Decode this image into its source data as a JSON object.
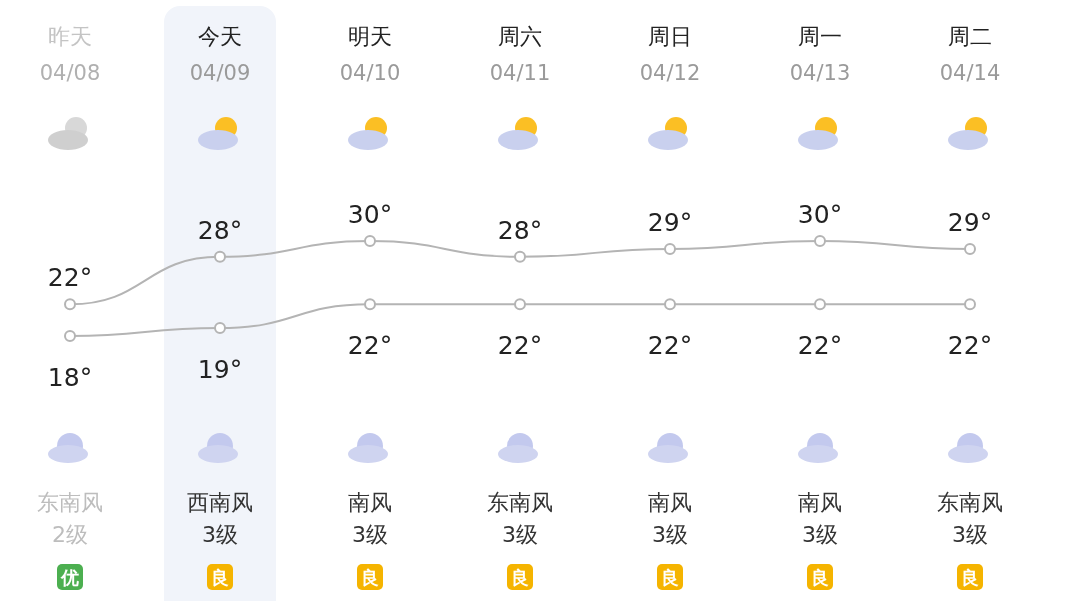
{
  "chart_data": {
    "type": "line",
    "categories": [
      "昨天\n04/08",
      "今天\n04/09",
      "明天\n04/10",
      "周六\n04/11",
      "周日\n04/12",
      "周一\n04/13",
      "周二\n04/14"
    ],
    "series": [
      {
        "color": "#b4b4b4",
        "values": [
          22,
          28,
          30,
          28,
          29,
          30,
          29
        ],
        "value_labels": [
          "22°",
          "28°",
          "30°",
          "28°",
          "29°",
          "30°",
          "29°"
        ]
      },
      {
        "color": "#b4b4b4",
        "values": [
          18,
          19,
          22,
          22,
          22,
          22,
          22
        ],
        "value_labels": [
          "18°",
          "19°",
          "22°",
          "22°",
          "22°",
          "22°",
          "22°"
        ]
      }
    ],
    "marker": "circle",
    "annotations": [
      "东南风\n2级",
      "西南风\n3级",
      "南风\n3级",
      "东南风\n3级",
      "南风\n3级",
      "南风\n3级",
      "东南风\n3级",
      "优",
      "良",
      "良",
      "良",
      "良",
      "良",
      "良"
    ]
  }
}
